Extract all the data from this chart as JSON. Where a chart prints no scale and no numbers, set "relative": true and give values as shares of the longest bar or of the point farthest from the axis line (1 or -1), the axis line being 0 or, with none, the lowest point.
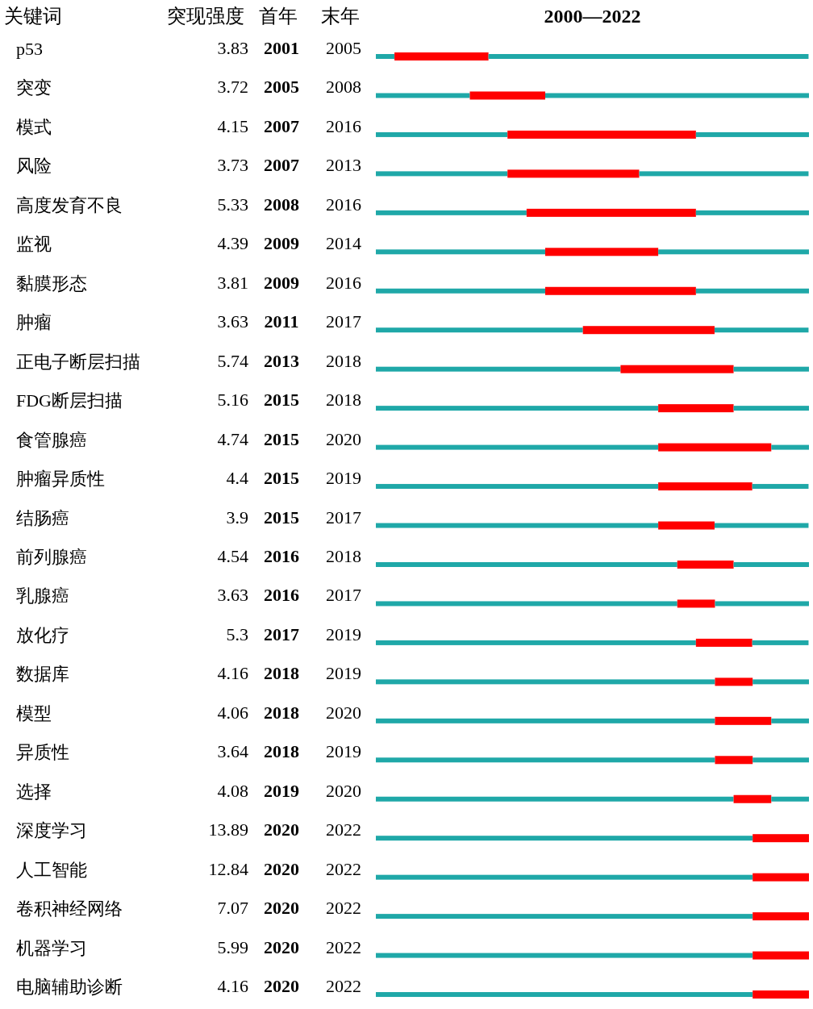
{
  "chart_data": {
    "type": "bar",
    "orientation": "horizontal",
    "stacked": true,
    "title": "2000—2022",
    "ylabel": "关键词",
    "categories": [
      "p53",
      "突变",
      "模式",
      "风险",
      "高度发育不良",
      "监视",
      "黏膜形态",
      "肿瘤",
      "正电子断层扫描",
      "FDG断层扫描",
      "食管腺癌",
      "肿瘤异质性",
      "结肠癌",
      "前列腺癌",
      "乳腺癌",
      "放化疗",
      "数据库",
      "模型",
      "异质性",
      "选择",
      "深度学习",
      "人工智能",
      "卷积神经网络",
      "机器学习",
      "电脑辅助诊断"
    ],
    "relative": true,
    "series": [
      {
        "color": "#1fa8a8",
        "values": [
          0.043,
          0.217,
          0.304,
          0.304,
          0.348,
          0.391,
          0.391,
          0.478,
          0.565,
          0.652,
          0.652,
          0.652,
          0.652,
          0.696,
          0.696,
          0.739,
          0.783,
          0.783,
          0.783,
          0.826,
          0.87,
          0.87,
          0.87,
          0.87,
          0.87
        ]
      },
      {
        "color": "#ff0000",
        "values": [
          0.217,
          0.174,
          0.435,
          0.304,
          0.391,
          0.261,
          0.348,
          0.304,
          0.261,
          0.174,
          0.261,
          0.217,
          0.13,
          0.13,
          0.087,
          0.13,
          0.087,
          0.13,
          0.087,
          0.087,
          0.13,
          0.13,
          0.13,
          0.13,
          0.13
        ]
      },
      {
        "color": "#1fa8a8",
        "values": [
          0.739,
          0.609,
          0.261,
          0.391,
          0.261,
          0.348,
          0.261,
          0.217,
          0.174,
          0.174,
          0.087,
          0.13,
          0.217,
          0.174,
          0.217,
          0.13,
          0.13,
          0.087,
          0.13,
          0.087,
          0,
          0,
          0,
          0,
          0
        ]
      }
    ],
    "annotations": [
      "突现强度",
      "首年",
      "末年",
      "3.83",
      "2001",
      "2005",
      "3.72",
      "2005",
      "2008",
      "4.15",
      "2007",
      "2016",
      "3.73",
      "2007",
      "2013",
      "5.33",
      "2008",
      "2016",
      "4.39",
      "2009",
      "2014",
      "3.81",
      "2009",
      "2016",
      "3.63",
      "2011",
      "2017",
      "5.74",
      "2013",
      "2018",
      "5.16",
      "2015",
      "2018",
      "4.74",
      "2015",
      "2020",
      "4.4",
      "2015",
      "2019",
      "3.9",
      "2015",
      "2017",
      "4.54",
      "2016",
      "2018",
      "3.63",
      "2016",
      "2017",
      "5.3",
      "2017",
      "2019",
      "4.16",
      "2018",
      "2019",
      "4.06",
      "2018",
      "2020",
      "3.64",
      "2018",
      "2019",
      "4.08",
      "2019",
      "2020",
      "13.89",
      "2020",
      "2022",
      "12.84",
      "2020",
      "2022",
      "7.07",
      "2020",
      "2022",
      "5.99",
      "2020",
      "2022",
      "4.16",
      "2020",
      "2022"
    ]
  }
}
